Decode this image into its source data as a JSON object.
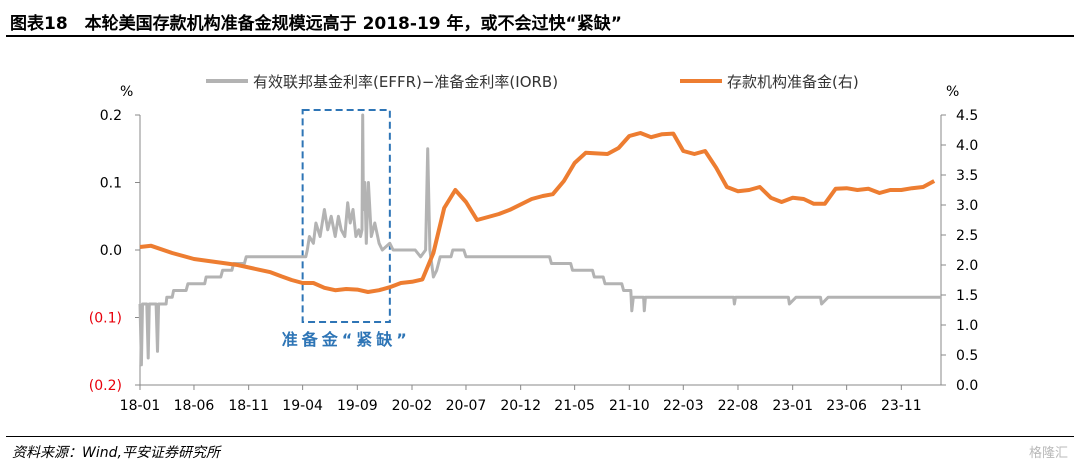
{
  "figure": {
    "title": "图表18　本轮美国存款机构准备金规模远高于 2018-19 年，或不会过快“紧缺”",
    "source": "资料来源：Wind,平安证券研究所",
    "watermark": "格隆汇"
  },
  "chart_data": {
    "type": "line",
    "left_axis": {
      "unit_label": "%",
      "ylim": [
        -0.2,
        0.2
      ],
      "ticks": [
        0.2,
        0.1,
        0.0,
        -0.1,
        -0.2
      ],
      "tick_labels": [
        "0.2",
        "0.1",
        "0.0",
        "(0.1)",
        "(0.2)"
      ],
      "negative_color": "#e8000b"
    },
    "right_axis": {
      "unit_label": "%",
      "ylim": [
        0.0,
        4.5
      ],
      "ticks": [
        0.0,
        0.5,
        1.0,
        1.5,
        2.0,
        2.5,
        3.0,
        3.5,
        4.0,
        4.5
      ],
      "tick_labels": [
        "0.0",
        "0.5",
        "1.0",
        "1.5",
        "2.0",
        "2.5",
        "3.0",
        "3.5",
        "4.0",
        "4.5"
      ]
    },
    "x_axis": {
      "range": [
        "2018-01",
        "2024-02"
      ],
      "tick_labels": [
        "18-01",
        "18-06",
        "18-11",
        "19-04",
        "19-09",
        "20-02",
        "20-07",
        "20-12",
        "21-05",
        "21-10",
        "22-03",
        "22-08",
        "23-01",
        "23-06",
        "23-11"
      ]
    },
    "grid": false,
    "legend_position": "top",
    "annotation": {
      "text": "准备金“紧缺”",
      "period": [
        "2019-04",
        "2019-12"
      ],
      "color": "#2e75b6"
    },
    "series": [
      {
        "name": "有效联邦基金利率(EFFR)−准备金利率(IORB)",
        "axis": "left",
        "color": "#b3b3b3",
        "points": [
          [
            "2018-01-01",
            -0.08
          ],
          [
            "2018-01-05",
            -0.17
          ],
          [
            "2018-01-08",
            -0.08
          ],
          [
            "2018-01-20",
            -0.08
          ],
          [
            "2018-01-24",
            -0.16
          ],
          [
            "2018-01-27",
            -0.08
          ],
          [
            "2018-02-15",
            -0.08
          ],
          [
            "2018-02-19",
            -0.15
          ],
          [
            "2018-02-22",
            -0.08
          ],
          [
            "2018-03-15",
            -0.08
          ],
          [
            "2018-03-17",
            -0.07
          ],
          [
            "2018-04-01",
            -0.07
          ],
          [
            "2018-04-05",
            -0.06
          ],
          [
            "2018-05-10",
            -0.06
          ],
          [
            "2018-05-15",
            -0.05
          ],
          [
            "2018-07-01",
            -0.05
          ],
          [
            "2018-07-05",
            -0.04
          ],
          [
            "2018-08-15",
            -0.04
          ],
          [
            "2018-08-20",
            -0.03
          ],
          [
            "2018-09-15",
            -0.03
          ],
          [
            "2018-09-20",
            -0.02
          ],
          [
            "2018-10-20",
            -0.02
          ],
          [
            "2018-10-25",
            -0.01
          ],
          [
            "2019-04-10",
            -0.01
          ],
          [
            "2019-04-14",
            0.0
          ],
          [
            "2019-04-20",
            0.02
          ],
          [
            "2019-05-01",
            0.01
          ],
          [
            "2019-05-08",
            0.04
          ],
          [
            "2019-05-20",
            0.02
          ],
          [
            "2019-06-01",
            0.06
          ],
          [
            "2019-06-10",
            0.03
          ],
          [
            "2019-06-20",
            0.05
          ],
          [
            "2019-07-01",
            0.02
          ],
          [
            "2019-07-10",
            0.05
          ],
          [
            "2019-07-18",
            0.03
          ],
          [
            "2019-07-28",
            0.02
          ],
          [
            "2019-08-05",
            0.07
          ],
          [
            "2019-08-12",
            0.04
          ],
          [
            "2019-08-20",
            0.06
          ],
          [
            "2019-08-28",
            0.02
          ],
          [
            "2019-09-05",
            0.03
          ],
          [
            "2019-09-10",
            0.02
          ],
          [
            "2019-09-14",
            0.03
          ],
          [
            "2019-09-16",
            0.2
          ],
          [
            "2019-09-18",
            0.06
          ],
          [
            "2019-09-22",
            0.1
          ],
          [
            "2019-09-26",
            0.01
          ],
          [
            "2019-10-02",
            0.1
          ],
          [
            "2019-10-10",
            0.02
          ],
          [
            "2019-10-20",
            0.04
          ],
          [
            "2019-11-01",
            0.01
          ],
          [
            "2019-11-10",
            0.0
          ],
          [
            "2019-12-01",
            0.01
          ],
          [
            "2019-12-10",
            0.0
          ],
          [
            "2020-01-15",
            0.0
          ],
          [
            "2020-02-10",
            0.0
          ],
          [
            "2020-02-25",
            -0.01
          ],
          [
            "2020-03-10",
            0.0
          ],
          [
            "2020-03-16",
            0.15
          ],
          [
            "2020-03-22",
            0.0
          ],
          [
            "2020-04-01",
            -0.04
          ],
          [
            "2020-04-10",
            -0.03
          ],
          [
            "2020-04-20",
            -0.01
          ],
          [
            "2020-05-20",
            -0.01
          ],
          [
            "2020-05-25",
            0.0
          ],
          [
            "2020-06-25",
            0.0
          ],
          [
            "2020-07-01",
            -0.01
          ],
          [
            "2021-02-20",
            -0.01
          ],
          [
            "2021-02-25",
            -0.02
          ],
          [
            "2021-04-20",
            -0.02
          ],
          [
            "2021-04-25",
            -0.03
          ],
          [
            "2021-06-20",
            -0.03
          ],
          [
            "2021-06-25",
            -0.04
          ],
          [
            "2021-07-20",
            -0.04
          ],
          [
            "2021-07-25",
            -0.05
          ],
          [
            "2021-09-10",
            -0.05
          ],
          [
            "2021-09-15",
            -0.06
          ],
          [
            "2021-10-05",
            -0.06
          ],
          [
            "2021-10-08",
            -0.09
          ],
          [
            "2021-10-12",
            -0.07
          ],
          [
            "2021-11-10",
            -0.07
          ],
          [
            "2021-11-12",
            -0.09
          ],
          [
            "2021-11-15",
            -0.07
          ],
          [
            "2022-07-20",
            -0.07
          ],
          [
            "2022-07-22",
            -0.08
          ],
          [
            "2022-07-25",
            -0.07
          ],
          [
            "2022-12-20",
            -0.07
          ],
          [
            "2022-12-23",
            -0.08
          ],
          [
            "2023-01-10",
            -0.07
          ],
          [
            "2023-03-20",
            -0.07
          ],
          [
            "2023-03-23",
            -0.08
          ],
          [
            "2023-04-10",
            -0.07
          ],
          [
            "2024-02-20",
            -0.07
          ]
        ]
      },
      {
        "name": "存款机构准备金(右)",
        "axis": "right",
        "color": "#ed7d31",
        "points": [
          [
            "2018-01-01",
            2.3
          ],
          [
            "2018-02-01",
            2.32
          ],
          [
            "2018-04-01",
            2.2
          ],
          [
            "2018-06-01",
            2.1
          ],
          [
            "2018-08-01",
            2.05
          ],
          [
            "2018-10-01",
            2.0
          ],
          [
            "2018-12-01",
            1.92
          ],
          [
            "2019-01-01",
            1.88
          ],
          [
            "2019-02-01",
            1.81
          ],
          [
            "2019-03-01",
            1.75
          ],
          [
            "2019-04-01",
            1.7
          ],
          [
            "2019-05-01",
            1.7
          ],
          [
            "2019-06-01",
            1.62
          ],
          [
            "2019-07-01",
            1.58
          ],
          [
            "2019-08-01",
            1.6
          ],
          [
            "2019-09-01",
            1.59
          ],
          [
            "2019-10-01",
            1.55
          ],
          [
            "2019-11-01",
            1.58
          ],
          [
            "2019-12-01",
            1.63
          ],
          [
            "2020-01-01",
            1.7
          ],
          [
            "2020-02-01",
            1.72
          ],
          [
            "2020-03-01",
            1.76
          ],
          [
            "2020-04-01",
            2.2
          ],
          [
            "2020-05-01",
            2.95
          ],
          [
            "2020-06-01",
            3.25
          ],
          [
            "2020-07-01",
            3.05
          ],
          [
            "2020-08-01",
            2.75
          ],
          [
            "2020-09-01",
            2.8
          ],
          [
            "2020-10-01",
            2.85
          ],
          [
            "2020-11-01",
            2.92
          ],
          [
            "2021-01-01",
            3.1
          ],
          [
            "2021-02-01",
            3.15
          ],
          [
            "2021-03-01",
            3.18
          ],
          [
            "2021-04-01",
            3.4
          ],
          [
            "2021-05-01",
            3.7
          ],
          [
            "2021-06-01",
            3.87
          ],
          [
            "2021-07-01",
            3.86
          ],
          [
            "2021-08-01",
            3.85
          ],
          [
            "2021-09-01",
            3.95
          ],
          [
            "2021-10-01",
            4.15
          ],
          [
            "2021-11-01",
            4.2
          ],
          [
            "2021-12-01",
            4.13
          ],
          [
            "2022-01-01",
            4.18
          ],
          [
            "2022-02-01",
            4.19
          ],
          [
            "2022-03-01",
            3.9
          ],
          [
            "2022-04-01",
            3.85
          ],
          [
            "2022-05-01",
            3.9
          ],
          [
            "2022-06-01",
            3.62
          ],
          [
            "2022-07-01",
            3.3
          ],
          [
            "2022-08-01",
            3.23
          ],
          [
            "2022-09-01",
            3.25
          ],
          [
            "2022-10-01",
            3.3
          ],
          [
            "2022-11-01",
            3.12
          ],
          [
            "2022-12-01",
            3.05
          ],
          [
            "2023-01-01",
            3.12
          ],
          [
            "2023-02-01",
            3.1
          ],
          [
            "2023-03-01",
            3.02
          ],
          [
            "2023-04-01",
            3.02
          ],
          [
            "2023-05-01",
            3.27
          ],
          [
            "2023-06-01",
            3.28
          ],
          [
            "2023-07-01",
            3.25
          ],
          [
            "2023-08-01",
            3.27
          ],
          [
            "2023-09-01",
            3.2
          ],
          [
            "2023-10-01",
            3.25
          ],
          [
            "2023-11-01",
            3.25
          ],
          [
            "2023-12-01",
            3.28
          ],
          [
            "2024-01-01",
            3.3
          ],
          [
            "2024-02-01",
            3.4
          ]
        ]
      }
    ]
  }
}
